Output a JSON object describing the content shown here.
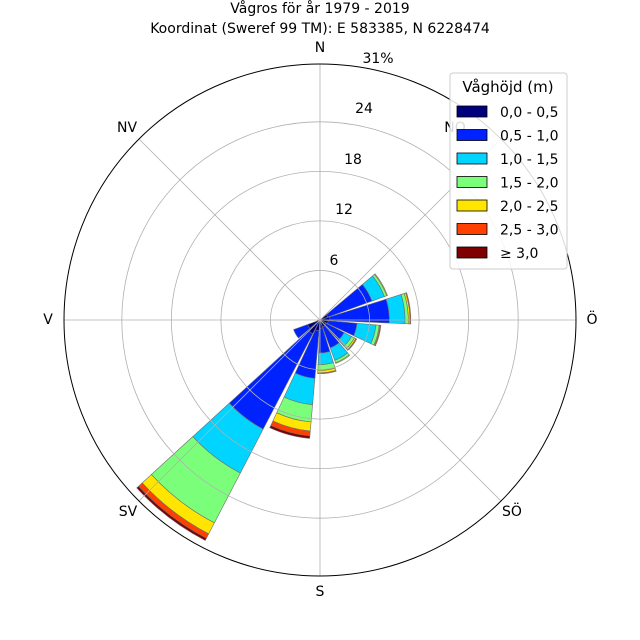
{
  "chart_data": {
    "type": "wind-rose",
    "title_line1": "Vågros för år 1979 - 2019",
    "title_line2": "Koordinat (Sweref 99 TM): E 583385, N 6228474",
    "directions": [
      "N",
      "NO",
      "Ö",
      "SÖ",
      "S",
      "SV",
      "V",
      "NV"
    ],
    "rlim": [
      0,
      31
    ],
    "rings": [
      6,
      12,
      18,
      24
    ],
    "ring_labels": [
      "6",
      "12",
      "18",
      "24"
    ],
    "outer_label": "31%",
    "grid": true,
    "legend_title": "Våghöjd (m)",
    "legend_position": "top-right",
    "bins": [
      {
        "label": "0,0 - 0,5",
        "color": "#00007f"
      },
      {
        "label": "0,5 - 1,0",
        "color": "#0022ff"
      },
      {
        "label": "1,0 - 1,5",
        "color": "#00d4ff"
      },
      {
        "label": "1,5 - 2,0",
        "color": "#7bff7b"
      },
      {
        "label": "2,0 - 2,5",
        "color": "#ffe500"
      },
      {
        "label": "2,5 - 3,0",
        "color": "#ff4000"
      },
      {
        "label": "≥ 3,0",
        "color": "#7f0000"
      }
    ],
    "sectors": [
      {
        "direction_deg": 60,
        "values": [
          1.0,
          5.7,
          1.6,
          0.3,
          0.1,
          0.0,
          0.0
        ]
      },
      {
        "direction_deg": 82.5,
        "values": [
          1.2,
          7.2,
          1.9,
          0.4,
          0.2,
          0.1,
          0.0
        ]
      },
      {
        "direction_deg": 105,
        "values": [
          1.0,
          3.5,
          2.3,
          0.4,
          0.1,
          0.1,
          0.0
        ]
      },
      {
        "direction_deg": 127.5,
        "values": [
          0.8,
          2.5,
          1.0,
          0.4,
          0.2,
          0.1,
          0.0
        ]
      },
      {
        "direction_deg": 150,
        "values": [
          0.9,
          2.7,
          1.6,
          0.3,
          0.1,
          0.0,
          0.0
        ]
      },
      {
        "direction_deg": 172.5,
        "values": [
          1.0,
          3.0,
          1.4,
          0.7,
          0.3,
          0.1,
          0.0
        ]
      },
      {
        "direction_deg": 195,
        "values": [
          1.3,
          5.8,
          3.2,
          2.1,
          1.1,
          0.6,
          0.3
        ]
      },
      {
        "direction_deg": 217.5,
        "values": [
          1.9,
          13.0,
          6.0,
          6.8,
          1.5,
          0.6,
          0.3
        ]
      },
      {
        "direction_deg": 240,
        "values": [
          1.6,
          1.8,
          0.0,
          0.0,
          0.0,
          0.0,
          0.0
        ]
      },
      {
        "direction_deg": 262.5,
        "values": [
          0.2,
          0.1,
          0.0,
          0.0,
          0.0,
          0.0,
          0.0
        ]
      }
    ]
  }
}
